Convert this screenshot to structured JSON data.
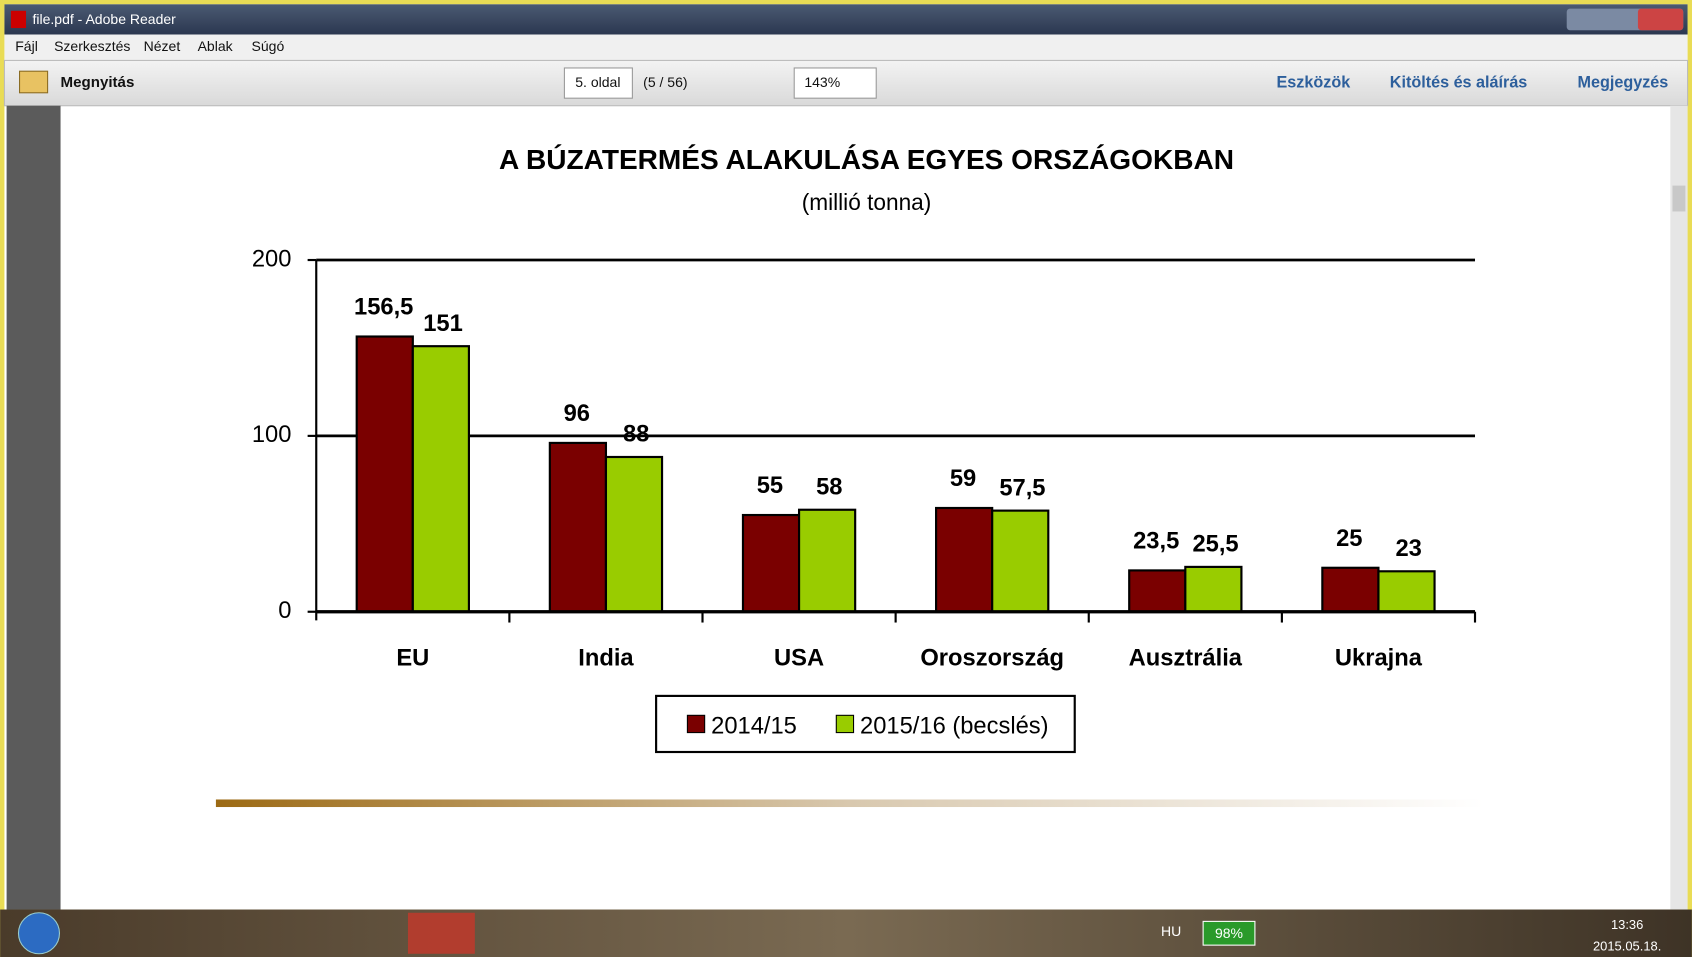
{
  "window": {
    "title": "file.pdf - Adobe Reader"
  },
  "menu": [
    "Fájl",
    "Szerkesztés",
    "Nézet",
    "Ablak",
    "Súgó"
  ],
  "toolbar": {
    "open": "Megnyitás",
    "page": "5. oldal",
    "page_count": "(5 / 56)",
    "zoom": "143%",
    "tabs": [
      "Eszközök",
      "Kitöltés és aláírás",
      "Megjegyzés"
    ]
  },
  "taskbar": {
    "language": "HU",
    "battery": "98%",
    "time": "13:36",
    "date": "2015.05.18."
  },
  "chart_data": {
    "type": "bar",
    "title": "A BÚZATERMÉS ALAKULÁSA EGYES ORSZÁGOKBAN",
    "subtitle": "(millió tonna)",
    "categories": [
      "EU",
      "India",
      "USA",
      "Oroszország",
      "Ausztrália",
      "Ukrajna"
    ],
    "series": [
      {
        "name": "2014/15",
        "color": "#7a0000",
        "values": [
          156.5,
          96,
          55,
          59,
          23.5,
          25
        ],
        "value_labels": [
          "156,5",
          "96",
          "55",
          "59",
          "23,5",
          "25"
        ]
      },
      {
        "name": "2015/16 (becslés)",
        "color": "#99cc00",
        "values": [
          151,
          88,
          58,
          57.5,
          25.5,
          23
        ],
        "value_labels": [
          "151",
          "88",
          "58",
          "57,5",
          "25,5",
          "23"
        ]
      }
    ],
    "ylim": [
      0,
      200
    ],
    "yticks": [
      0,
      100,
      200
    ],
    "grid": true,
    "legend": "bottom"
  }
}
